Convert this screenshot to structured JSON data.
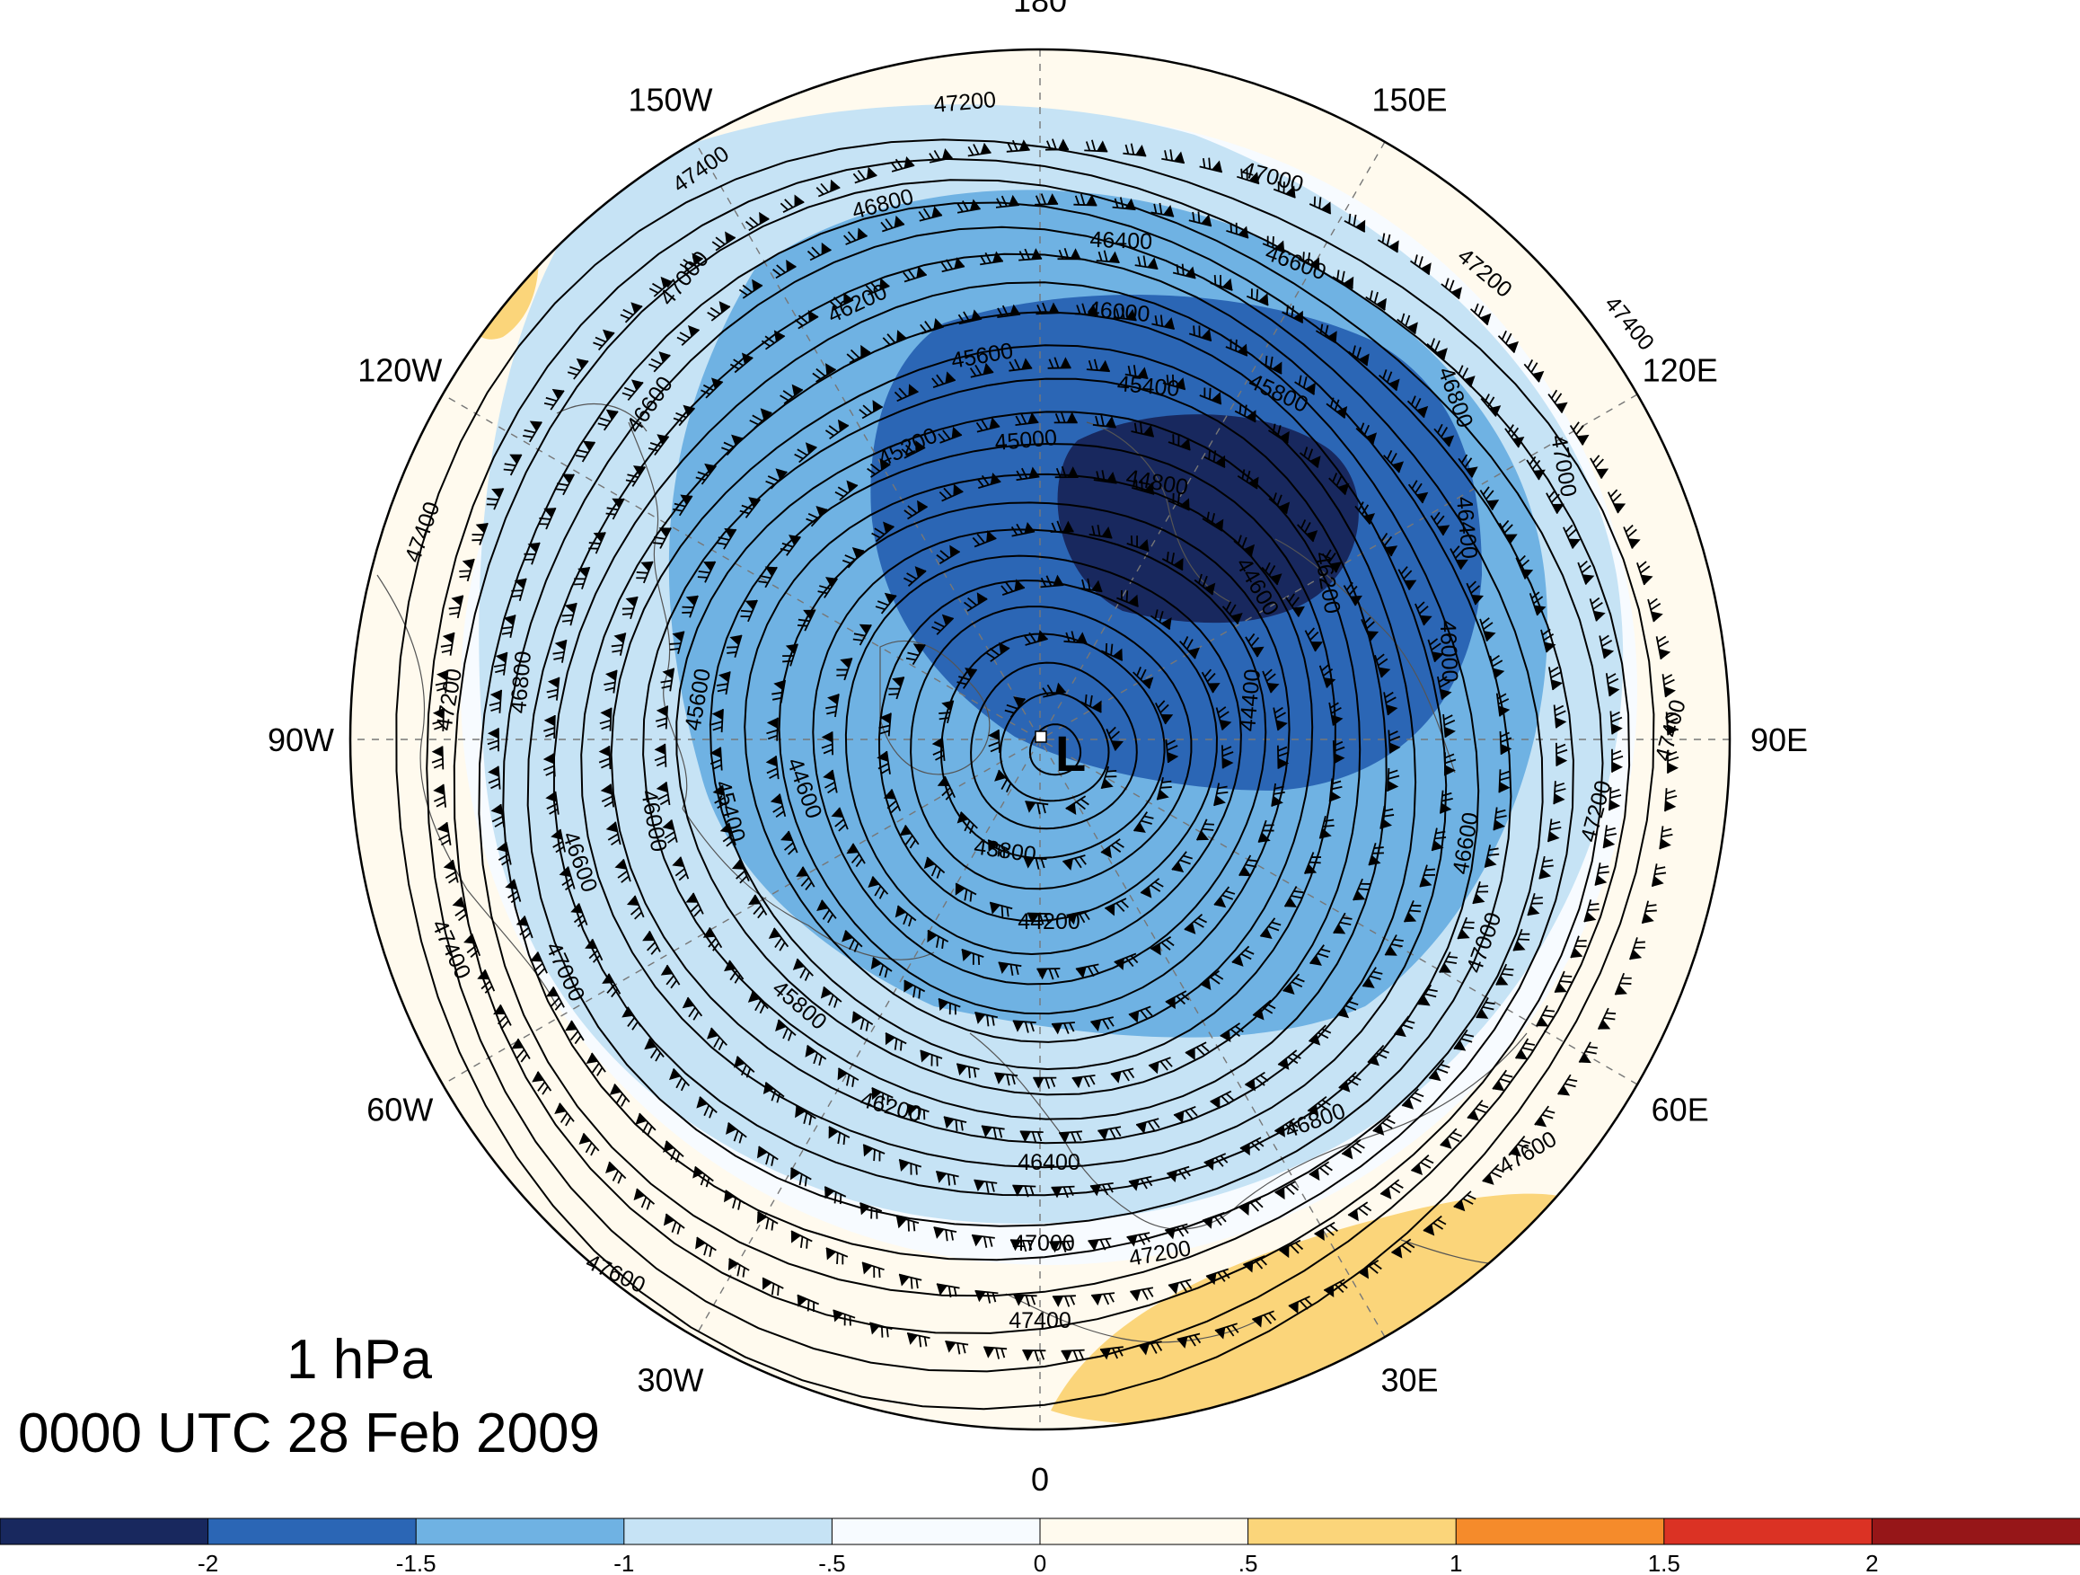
{
  "caption": {
    "level": "1 hPa",
    "time": "0000 UTC 28 Feb 2009"
  },
  "longitude_labels": [
    {
      "text": "180",
      "angle": 0
    },
    {
      "text": "150E",
      "angle": 30
    },
    {
      "text": "120E",
      "angle": 60
    },
    {
      "text": "90E",
      "angle": 90
    },
    {
      "text": "60E",
      "angle": 120
    },
    {
      "text": "30E",
      "angle": 150
    },
    {
      "text": "0",
      "angle": 180
    },
    {
      "text": "30W",
      "angle": 210
    },
    {
      "text": "60W",
      "angle": 240
    },
    {
      "text": "90W",
      "angle": 270
    },
    {
      "text": "120W",
      "angle": 300
    },
    {
      "text": "150W",
      "angle": 330
    }
  ],
  "low_center": {
    "label": "L"
  },
  "height_contour_labels": [
    "43800",
    "44200",
    "44400",
    "44600",
    "44800",
    "45000",
    "45200",
    "45400",
    "45600",
    "45800",
    "46000",
    "46200",
    "46400",
    "46600",
    "46800",
    "47000",
    "47200",
    "47400",
    "47600"
  ],
  "anomaly_regions": [
    {
      "category": "-0.5 to 0",
      "color": "#f7fbff"
    },
    {
      "category": "-1 to -0.5",
      "color": "#c6e3f5"
    },
    {
      "category": "-1.5 to -1",
      "color": "#6fb2e3"
    },
    {
      "category": "-2 to -1.5",
      "color": "#2b66b5"
    },
    {
      "category": "< -2",
      "color": "#18285e"
    },
    {
      "category": "0 to .5",
      "color": "#fffaee"
    },
    {
      "category": ".5 to 1",
      "color": "#fbd57a"
    }
  ],
  "colorbar": {
    "colors": [
      "#18285e",
      "#2b66b5",
      "#6fb2e3",
      "#c6e3f5",
      "#f7fbff",
      "#fffaee",
      "#fbd57a",
      "#f58b2b",
      "#db3224",
      "#961618"
    ],
    "tick_labels": [
      "-2",
      "-1.5",
      "-1",
      "-.5",
      "0",
      ".5",
      "1",
      "1.5",
      "2"
    ]
  }
}
